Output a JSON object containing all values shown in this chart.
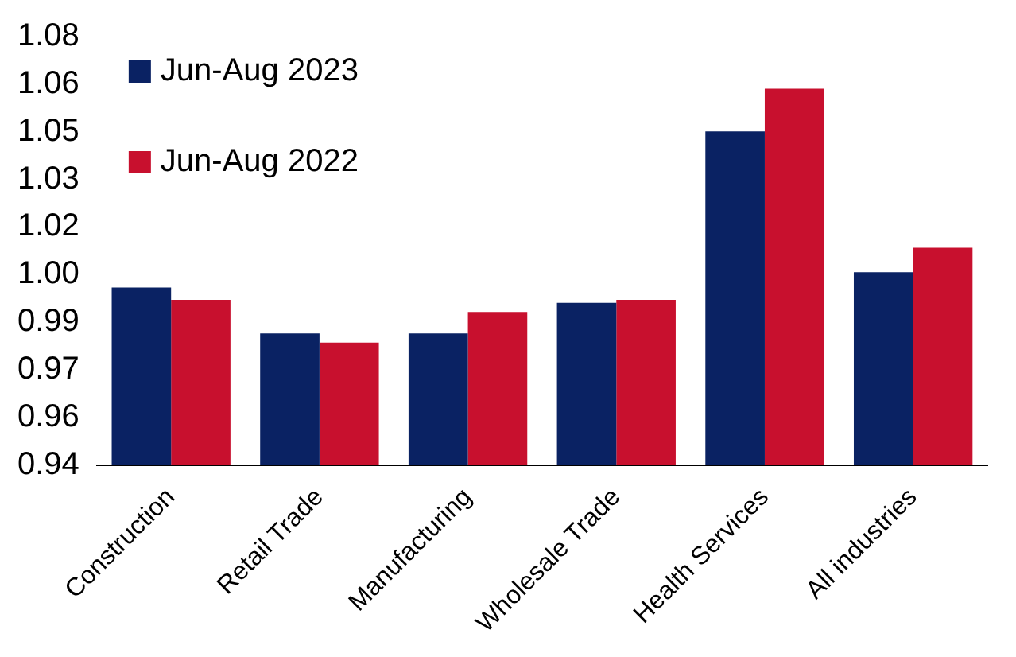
{
  "chart_data": {
    "type": "bar",
    "categories": [
      "Construction",
      "Retail Trade",
      "Manufacturing",
      "Wholesale Trade",
      "Health Services",
      "All industries"
    ],
    "series": [
      {
        "name": "Jun-Aug 2023",
        "color": "#0a2263",
        "values": [
          0.998,
          0.983,
          0.983,
          0.993,
          1.049,
          1.003
        ]
      },
      {
        "name": "Jun-Aug 2022",
        "color": "#c8102e",
        "values": [
          0.994,
          0.98,
          0.99,
          0.994,
          1.063,
          1.011
        ]
      }
    ],
    "ylim": [
      0.94,
      1.08
    ],
    "yticks": [
      {
        "value": 0.94,
        "label": "0.94"
      },
      {
        "value": 0.9556,
        "label": "0.96"
      },
      {
        "value": 0.9711,
        "label": "0.97"
      },
      {
        "value": 0.9867,
        "label": "0.99"
      },
      {
        "value": 1.0022,
        "label": "1.00"
      },
      {
        "value": 1.0178,
        "label": "1.02"
      },
      {
        "value": 1.0333,
        "label": "1.03"
      },
      {
        "value": 1.0489,
        "label": "1.05"
      },
      {
        "value": 1.0644,
        "label": "1.06"
      },
      {
        "value": 1.08,
        "label": "1.08"
      }
    ],
    "grid": false,
    "legend": "top left"
  }
}
